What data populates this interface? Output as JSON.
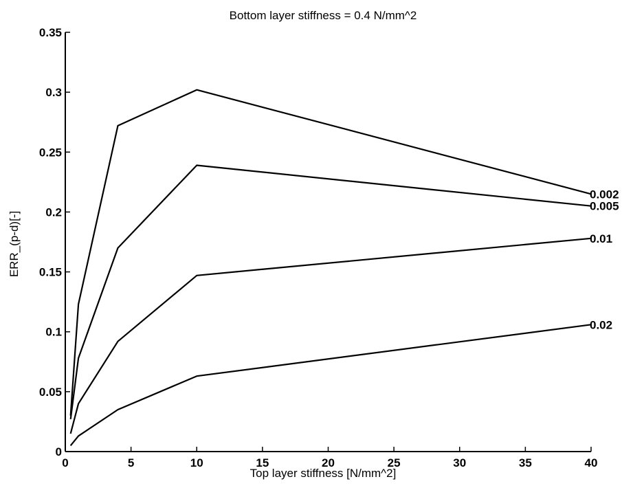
{
  "chart_data": {
    "type": "line",
    "title": "Bottom layer stiffness = 0.4 N/mm^2",
    "xlabel": "Top layer stiffness [N/mm^2]",
    "ylabel": "ERR_(p-d)[-]",
    "xlim": [
      0,
      40
    ],
    "ylim": [
      0,
      0.35
    ],
    "xticks": [
      0,
      5,
      10,
      15,
      20,
      25,
      30,
      35,
      40
    ],
    "yticks": [
      0,
      0.05,
      0.1,
      0.15,
      0.2,
      0.25,
      0.3,
      0.35
    ],
    "xtick_labels": [
      "0",
      "5",
      "10",
      "15",
      "20",
      "25",
      "30",
      "35",
      "40"
    ],
    "ytick_labels": [
      "0",
      "0.05",
      "0.1",
      "0.15",
      "0.2",
      "0.25",
      "0.3",
      "0.35"
    ],
    "grid": false,
    "x": [
      0.4,
      1,
      4,
      10,
      40
    ],
    "series": [
      {
        "name": "0.002",
        "values": [
          0.03,
          0.123,
          0.272,
          0.302,
          0.215
        ]
      },
      {
        "name": "0.005",
        "values": [
          0.027,
          0.078,
          0.17,
          0.239,
          0.205
        ]
      },
      {
        "name": "0.01",
        "values": [
          0.015,
          0.04,
          0.092,
          0.147,
          0.178
        ]
      },
      {
        "name": "0.02",
        "values": [
          0.005,
          0.013,
          0.035,
          0.063,
          0.106
        ]
      }
    ]
  }
}
